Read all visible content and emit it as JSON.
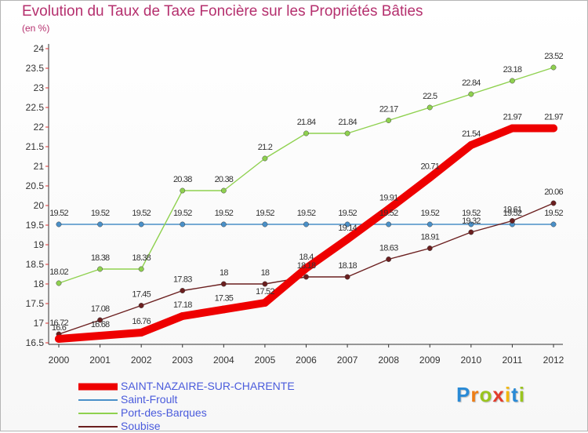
{
  "chart_data": {
    "type": "line",
    "title": "Evolution du Taux de Taxe Foncière sur les Propriétés Bâties",
    "unit": "(en %)",
    "x": [
      "2000",
      "2001",
      "2002",
      "2003",
      "2004",
      "2005",
      "2006",
      "2007",
      "2008",
      "2009",
      "2010",
      "2011",
      "2012"
    ],
    "ylim": [
      16.5,
      24
    ],
    "yticks": [
      "16.5",
      "17",
      "17.5",
      "18",
      "18.5",
      "19",
      "19.5",
      "20",
      "20.5",
      "21",
      "21.5",
      "22",
      "22.5",
      "23",
      "23.5",
      "24"
    ],
    "grid": false,
    "legend_position": "bottom-left",
    "series": [
      {
        "name": "SAINT-NAZAIRE-SUR-CHARENTE",
        "color": "#ee0000",
        "values": [
          16.6,
          16.68,
          16.76,
          17.18,
          17.35,
          17.52,
          18.4,
          19.14,
          19.91,
          20.71,
          21.54,
          21.97,
          21.97
        ],
        "labels": [
          "16.6",
          "16.68",
          "16.76",
          "17.18",
          "17.35",
          "17.52",
          "18.4",
          "19.14",
          "19.91",
          "20.71",
          "21.54",
          "21.97",
          "21.97"
        ]
      },
      {
        "name": "Saint-Froult",
        "color": "#4a90c8",
        "values": [
          19.52,
          19.52,
          19.52,
          19.52,
          19.52,
          19.52,
          19.52,
          19.52,
          19.52,
          19.52,
          19.52,
          19.52,
          19.52
        ],
        "labels": [
          "19.52",
          "19.52",
          "19.52",
          "19.52",
          "19.52",
          "19.52",
          "19.52",
          "19.52",
          "19.52",
          "19.52",
          "19.52",
          "19.52",
          "19.52"
        ]
      },
      {
        "name": "Port-des-Barques",
        "color": "#8fd14f",
        "values": [
          18.02,
          18.38,
          18.38,
          20.38,
          20.38,
          21.2,
          21.84,
          21.84,
          22.17,
          22.5,
          22.84,
          23.18,
          23.52
        ],
        "labels": [
          "18.02",
          "18.38",
          "18.38",
          "20.38",
          "20.38",
          "21.2",
          "21.84",
          "21.84",
          "22.17",
          "22.5",
          "22.84",
          "23.18",
          "23.52"
        ]
      },
      {
        "name": "Soubise",
        "color": "#6b1f1f",
        "values": [
          16.72,
          17.08,
          17.45,
          17.83,
          18,
          18,
          18.18,
          18.18,
          18.63,
          18.91,
          19.32,
          19.61,
          20.06
        ],
        "labels": [
          "16.72",
          "17.08",
          "17.45",
          "17.83",
          "18",
          "18",
          "18.18",
          "18.18",
          "18.63",
          "18.91",
          "19.32",
          "19.61",
          "20.06"
        ]
      }
    ]
  },
  "logo": {
    "letters": [
      "P",
      "r",
      "o",
      "x",
      "i",
      "t",
      "i"
    ],
    "colors": [
      "#2a8ad6",
      "#ef7d14",
      "#9ac51e",
      "#e23c2c",
      "#f2b70a",
      "#2a8ad6",
      "#9ac51e"
    ]
  }
}
